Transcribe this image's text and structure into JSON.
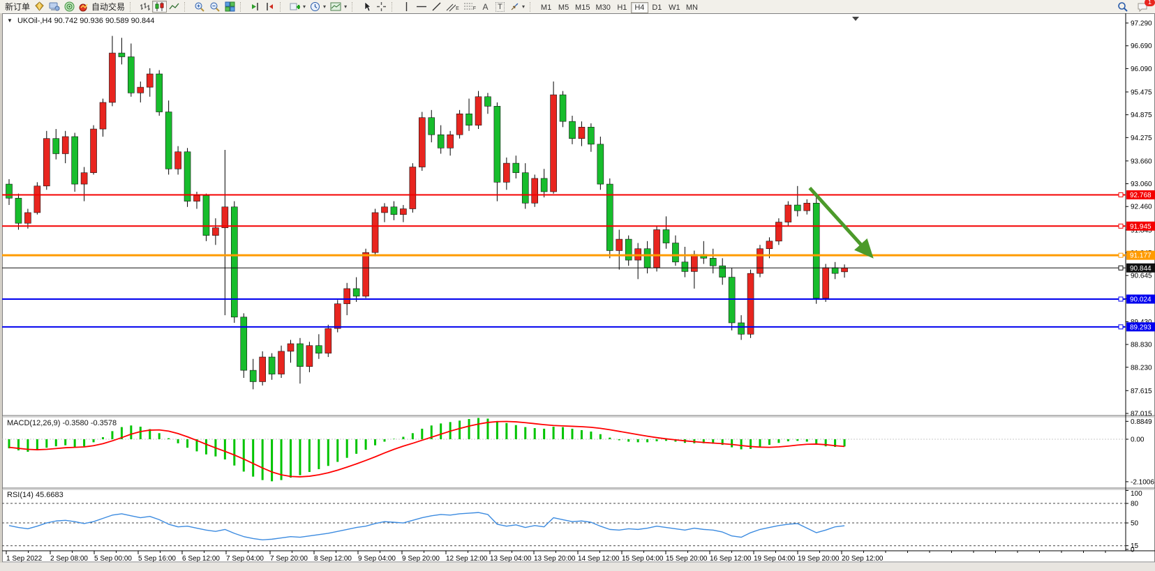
{
  "toolbar": {
    "new_order_label": "新订单",
    "auto_trading_label": "自动交易",
    "notification_count": "1",
    "tool_letters": {
      "channel": "E",
      "fibo": "F",
      "text": "A",
      "label": "T"
    },
    "timeframes": [
      "M1",
      "M5",
      "M15",
      "M30",
      "H1",
      "H4",
      "D1",
      "W1",
      "MN"
    ],
    "active_timeframe": "H4"
  },
  "chart": {
    "title_symbol": "UKOil-,H4",
    "title_ohlc": "90.742 90.936 90.589 90.844"
  },
  "chart_data": {
    "type": "candlestick",
    "symbol": "UKOil-",
    "timeframe": "H4",
    "last_ohlc": {
      "open": 90.742,
      "high": 90.936,
      "low": 90.589,
      "close": 90.844
    },
    "price_axis_ticks": [
      "97.290",
      "96.690",
      "96.090",
      "95.475",
      "94.875",
      "94.275",
      "93.660",
      "93.060",
      "92.460",
      "91.845",
      "91.245",
      "90.645",
      "90.030",
      "89.430",
      "88.830",
      "88.230",
      "87.615",
      "87.015"
    ],
    "time_labels": [
      "1 Sep 2022",
      "2 Sep 08:00",
      "5 Sep 00:00",
      "5 Sep 16:00",
      "6 Sep 12:00",
      "7 Sep 04:00",
      "7 Sep 20:00",
      "8 Sep 12:00",
      "9 Sep 04:00",
      "9 Sep 20:00",
      "12 Sep 12:00",
      "13 Sep 04:00",
      "13 Sep 20:00",
      "14 Sep 12:00",
      "15 Sep 04:00",
      "15 Sep 20:00",
      "16 Sep 12:00",
      "19 Sep 04:00",
      "19 Sep 20:00",
      "20 Sep 12:00"
    ],
    "hlines": [
      {
        "price": 92.768,
        "label": "92.768",
        "color": "#f40000",
        "width": 2
      },
      {
        "price": 91.945,
        "label": "91.945",
        "color": "#f40000",
        "width": 2
      },
      {
        "price": 91.177,
        "label": "91.177",
        "color": "#ff9b00",
        "width": 3
      },
      {
        "price": 90.844,
        "label": "90.844",
        "color": "#111111",
        "width": 1
      },
      {
        "price": 90.024,
        "label": "90.024",
        "color": "#0000ee",
        "width": 2
      },
      {
        "price": 89.293,
        "label": "89.293",
        "color": "#0000ee",
        "width": 2
      }
    ],
    "arrow": {
      "from_bar": 85.3,
      "from_price": 92.95,
      "to_bar": 91.6,
      "to_price": 91.23,
      "color": "#4c9a2a"
    },
    "candles": [
      [
        93.05,
        93.18,
        92.5,
        92.68
      ],
      [
        92.68,
        92.8,
        91.85,
        92.02
      ],
      [
        92.02,
        92.4,
        91.88,
        92.3
      ],
      [
        92.3,
        93.1,
        92.25,
        93.0
      ],
      [
        93.0,
        94.45,
        92.9,
        94.25
      ],
      [
        94.25,
        94.5,
        93.7,
        93.85
      ],
      [
        93.85,
        94.45,
        93.6,
        94.3
      ],
      [
        94.3,
        94.4,
        92.85,
        93.05
      ],
      [
        93.05,
        93.5,
        92.6,
        93.35
      ],
      [
        93.35,
        94.6,
        93.3,
        94.5
      ],
      [
        94.5,
        95.3,
        94.3,
        95.2
      ],
      [
        95.2,
        96.95,
        95.1,
        96.5
      ],
      [
        96.5,
        96.9,
        96.2,
        96.4
      ],
      [
        96.4,
        96.75,
        95.35,
        95.45
      ],
      [
        95.45,
        95.75,
        95.2,
        95.6
      ],
      [
        95.6,
        96.1,
        95.35,
        95.95
      ],
      [
        95.95,
        96.05,
        94.85,
        94.95
      ],
      [
        94.95,
        95.25,
        93.3,
        93.45
      ],
      [
        93.45,
        94.05,
        93.3,
        93.9
      ],
      [
        93.9,
        94.0,
        92.45,
        92.6
      ],
      [
        92.6,
        92.85,
        92.4,
        92.75
      ],
      [
        92.75,
        92.8,
        91.55,
        91.7
      ],
      [
        91.7,
        92.15,
        91.45,
        91.9
      ],
      [
        91.9,
        93.95,
        89.6,
        92.45
      ],
      [
        92.45,
        92.6,
        89.4,
        89.55
      ],
      [
        89.55,
        89.65,
        87.95,
        88.15
      ],
      [
        88.15,
        88.45,
        87.65,
        87.85
      ],
      [
        87.85,
        88.65,
        87.75,
        88.5
      ],
      [
        88.5,
        88.6,
        87.9,
        88.05
      ],
      [
        88.05,
        88.8,
        87.95,
        88.65
      ],
      [
        88.65,
        88.95,
        88.35,
        88.85
      ],
      [
        88.85,
        89.0,
        87.8,
        88.25
      ],
      [
        88.25,
        88.9,
        88.1,
        88.8
      ],
      [
        88.8,
        89.1,
        88.45,
        88.6
      ],
      [
        88.6,
        89.35,
        88.5,
        89.25
      ],
      [
        89.25,
        90.0,
        89.15,
        89.9
      ],
      [
        89.9,
        90.45,
        89.6,
        90.3
      ],
      [
        90.3,
        90.6,
        89.95,
        90.1
      ],
      [
        90.1,
        91.35,
        90.05,
        91.25
      ],
      [
        91.25,
        92.4,
        91.15,
        92.3
      ],
      [
        92.3,
        92.55,
        92.05,
        92.45
      ],
      [
        92.45,
        92.6,
        92.1,
        92.25
      ],
      [
        92.25,
        92.5,
        92.05,
        92.4
      ],
      [
        92.4,
        93.6,
        92.3,
        93.5
      ],
      [
        93.5,
        94.95,
        93.4,
        94.8
      ],
      [
        94.8,
        95.0,
        94.15,
        94.35
      ],
      [
        94.35,
        94.6,
        93.85,
        94.0
      ],
      [
        94.0,
        94.45,
        93.8,
        94.35
      ],
      [
        94.35,
        95.0,
        94.25,
        94.9
      ],
      [
        94.9,
        95.3,
        94.45,
        94.6
      ],
      [
        94.6,
        95.5,
        94.5,
        95.35
      ],
      [
        95.35,
        95.45,
        94.9,
        95.1
      ],
      [
        95.1,
        95.2,
        92.6,
        93.1
      ],
      [
        93.1,
        93.75,
        92.9,
        93.6
      ],
      [
        93.6,
        93.8,
        93.2,
        93.35
      ],
      [
        93.35,
        93.6,
        92.4,
        92.55
      ],
      [
        92.55,
        93.3,
        92.45,
        93.2
      ],
      [
        93.2,
        93.45,
        92.7,
        92.85
      ],
      [
        92.85,
        95.75,
        92.8,
        95.4
      ],
      [
        95.4,
        95.5,
        94.55,
        94.7
      ],
      [
        94.7,
        94.85,
        94.1,
        94.25
      ],
      [
        94.25,
        94.7,
        94.05,
        94.55
      ],
      [
        94.55,
        94.65,
        93.9,
        94.1
      ],
      [
        94.1,
        94.3,
        92.9,
        93.05
      ],
      [
        93.05,
        93.2,
        91.1,
        91.3
      ],
      [
        91.3,
        91.85,
        90.8,
        91.6
      ],
      [
        91.6,
        91.7,
        90.9,
        91.05
      ],
      [
        91.05,
        91.5,
        90.55,
        91.35
      ],
      [
        91.35,
        91.55,
        90.7,
        90.85
      ],
      [
        90.85,
        91.95,
        90.75,
        91.85
      ],
      [
        91.85,
        92.2,
        91.35,
        91.5
      ],
      [
        91.5,
        91.7,
        90.9,
        91.0
      ],
      [
        91.0,
        91.4,
        90.6,
        90.75
      ],
      [
        90.75,
        91.3,
        90.3,
        91.2
      ],
      [
        91.2,
        91.55,
        90.95,
        91.1
      ],
      [
        91.1,
        91.35,
        90.7,
        90.9
      ],
      [
        90.9,
        91.1,
        90.4,
        90.6
      ],
      [
        90.6,
        90.85,
        89.2,
        89.4
      ],
      [
        89.4,
        89.6,
        88.95,
        89.1
      ],
      [
        89.1,
        90.8,
        89.0,
        90.7
      ],
      [
        90.7,
        91.45,
        90.6,
        91.35
      ],
      [
        91.35,
        91.65,
        91.1,
        91.55
      ],
      [
        91.55,
        92.15,
        91.45,
        92.05
      ],
      [
        92.05,
        92.6,
        91.95,
        92.5
      ],
      [
        92.5,
        93.0,
        92.2,
        92.35
      ],
      [
        92.35,
        92.65,
        92.25,
        92.55
      ],
      [
        92.55,
        92.7,
        89.9,
        90.05
      ],
      [
        90.05,
        90.95,
        89.95,
        90.85
      ],
      [
        90.85,
        91.0,
        90.55,
        90.7
      ],
      [
        90.742,
        90.936,
        90.589,
        90.844
      ]
    ],
    "macd": {
      "name_label": "MACD(12,26,9) -0.3580 -0.3578",
      "axis_labels": [
        "0.8849",
        "0.00",
        "-2.1006"
      ],
      "axis_values": [
        0.8849,
        0,
        -2.1006
      ],
      "histogram": [
        -0.45,
        -0.55,
        -0.62,
        -0.55,
        -0.42,
        -0.35,
        -0.3,
        -0.38,
        -0.35,
        -0.15,
        0.1,
        0.4,
        0.6,
        0.68,
        0.62,
        0.5,
        0.3,
        0.05,
        -0.2,
        -0.42,
        -0.6,
        -0.75,
        -0.85,
        -1.0,
        -1.3,
        -1.6,
        -1.85,
        -2.02,
        -2.08,
        -2.02,
        -1.9,
        -1.78,
        -1.62,
        -1.48,
        -1.32,
        -1.12,
        -0.92,
        -0.72,
        -0.52,
        -0.3,
        -0.12,
        0.02,
        0.12,
        0.3,
        0.52,
        0.68,
        0.78,
        0.85,
        0.92,
        1.0,
        1.05,
        1.02,
        0.9,
        0.8,
        0.7,
        0.6,
        0.55,
        0.52,
        0.62,
        0.6,
        0.52,
        0.45,
        0.38,
        0.25,
        0.08,
        -0.05,
        -0.12,
        -0.15,
        -0.15,
        -0.1,
        -0.08,
        -0.12,
        -0.18,
        -0.2,
        -0.2,
        -0.22,
        -0.28,
        -0.4,
        -0.5,
        -0.48,
        -0.38,
        -0.28,
        -0.18,
        -0.1,
        -0.08,
        -0.12,
        -0.25,
        -0.35,
        -0.38,
        -0.358
      ],
      "signal": [
        -0.4,
        -0.45,
        -0.5,
        -0.52,
        -0.5,
        -0.46,
        -0.42,
        -0.4,
        -0.38,
        -0.32,
        -0.22,
        -0.08,
        0.08,
        0.25,
        0.38,
        0.45,
        0.46,
        0.4,
        0.28,
        0.12,
        -0.06,
        -0.25,
        -0.43,
        -0.6,
        -0.78,
        -0.98,
        -1.2,
        -1.42,
        -1.62,
        -1.76,
        -1.84,
        -1.86,
        -1.83,
        -1.76,
        -1.66,
        -1.53,
        -1.38,
        -1.22,
        -1.05,
        -0.87,
        -0.68,
        -0.5,
        -0.34,
        -0.2,
        -0.05,
        0.1,
        0.25,
        0.4,
        0.53,
        0.65,
        0.75,
        0.83,
        0.87,
        0.88,
        0.86,
        0.82,
        0.77,
        0.72,
        0.68,
        0.66,
        0.64,
        0.62,
        0.59,
        0.54,
        0.47,
        0.39,
        0.31,
        0.23,
        0.15,
        0.08,
        0.02,
        -0.03,
        -0.08,
        -0.12,
        -0.16,
        -0.19,
        -0.22,
        -0.26,
        -0.31,
        -0.36,
        -0.39,
        -0.4,
        -0.38,
        -0.34,
        -0.29,
        -0.25,
        -0.24,
        -0.27,
        -0.32,
        -0.3578
      ]
    },
    "rsi": {
      "name_label": "RSI(14) 45.6683",
      "levels": [
        100,
        80,
        50,
        15,
        0
      ],
      "dashed_levels": [
        80,
        50,
        15
      ],
      "values": [
        46,
        43,
        41,
        45,
        50,
        53,
        54,
        52,
        49,
        52,
        57,
        62,
        64,
        61,
        58,
        60,
        55,
        48,
        44,
        45,
        42,
        39,
        37,
        40,
        34,
        29,
        26,
        24,
        25,
        27,
        29,
        28,
        30,
        32,
        34,
        37,
        40,
        43,
        45,
        49,
        52,
        51,
        50,
        54,
        58,
        61,
        63,
        62,
        64,
        65,
        66,
        63,
        48,
        45,
        47,
        43,
        46,
        44,
        58,
        55,
        52,
        53,
        51,
        45,
        40,
        39,
        41,
        40,
        42,
        45,
        43,
        41,
        39,
        42,
        40,
        39,
        36,
        30,
        28,
        35,
        40,
        43,
        46,
        48,
        49,
        42,
        35,
        39,
        44,
        45.67
      ]
    },
    "colors": {
      "bull": "#e8251f",
      "bear": "#17bd2c",
      "wick": "#000000",
      "macd_hist": "#00c400",
      "macd_signal": "#ff0000",
      "rsi_line": "#3c8be0"
    }
  }
}
